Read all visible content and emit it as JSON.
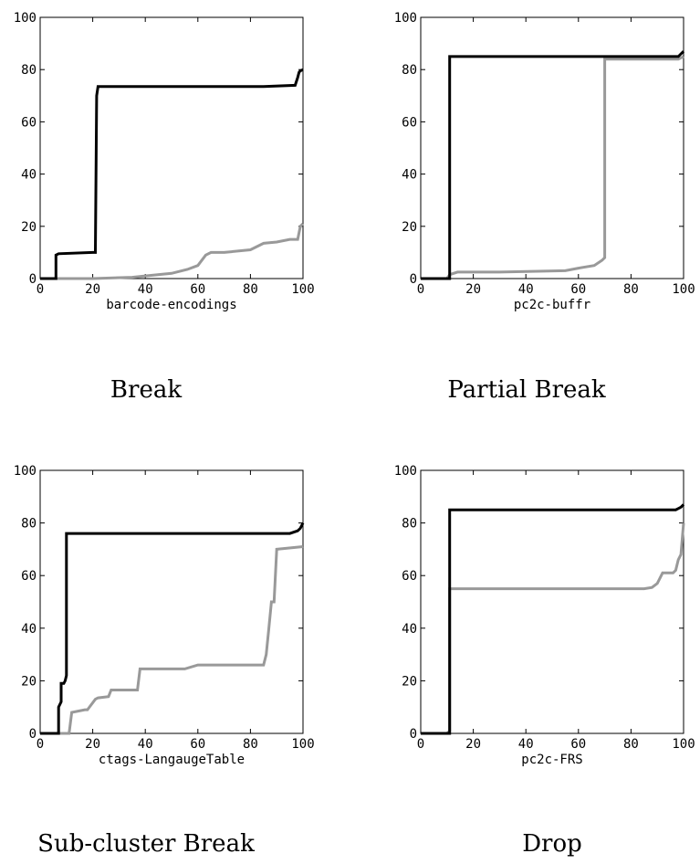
{
  "chart_data": [
    {
      "type": "line",
      "title": "",
      "caption": "Break",
      "xlabel": "barcode-encodings",
      "ylabel": "",
      "xlim": [
        0,
        100
      ],
      "ylim": [
        0,
        100
      ],
      "xticks": [
        0,
        20,
        40,
        60,
        80,
        100
      ],
      "yticks": [
        0,
        20,
        40,
        60,
        80,
        100
      ],
      "grid": false,
      "series": [
        {
          "color": "#000000",
          "x": [
            0,
            6,
            6,
            7,
            20,
            21,
            21.5,
            22,
            25,
            85,
            97,
            98,
            98.5,
            99,
            100
          ],
          "y": [
            0,
            0,
            9,
            9.5,
            10,
            10,
            70,
            73.5,
            73.5,
            73.5,
            74,
            77,
            79,
            79.5,
            80
          ]
        },
        {
          "color": "#999999",
          "x": [
            0,
            20,
            35,
            40,
            50,
            56,
            60,
            63,
            65,
            70,
            80,
            85,
            90,
            95,
            98,
            99,
            100
          ],
          "y": [
            0,
            0,
            0.5,
            1,
            2,
            3.5,
            5,
            9,
            10,
            10,
            11,
            13.5,
            14,
            15,
            15,
            20,
            21
          ]
        }
      ]
    },
    {
      "type": "line",
      "title": "",
      "caption": "Partial Break",
      "xlabel": "pc2c-buffr",
      "ylabel": "",
      "xlim": [
        0,
        100
      ],
      "ylim": [
        0,
        100
      ],
      "xticks": [
        0,
        20,
        40,
        60,
        80,
        100
      ],
      "yticks": [
        0,
        20,
        40,
        60,
        80,
        100
      ],
      "grid": false,
      "series": [
        {
          "color": "#000000",
          "x": [
            0,
            11,
            11,
            98,
            99,
            100
          ],
          "y": [
            0,
            0,
            85,
            85,
            86,
            87
          ]
        },
        {
          "color": "#999999",
          "x": [
            0,
            10,
            11,
            14,
            30,
            55,
            60,
            66,
            69,
            70,
            70,
            98,
            100
          ],
          "y": [
            0,
            0,
            1.5,
            2.5,
            2.5,
            3,
            4,
            5,
            7,
            8,
            84,
            84,
            85
          ]
        }
      ]
    },
    {
      "type": "line",
      "title": "",
      "caption": "Sub-cluster Break",
      "xlabel": "ctags-LangaugeTable",
      "ylabel": "",
      "xlim": [
        0,
        100
      ],
      "ylim": [
        0,
        100
      ],
      "xticks": [
        0,
        20,
        40,
        60,
        80,
        100
      ],
      "yticks": [
        0,
        20,
        40,
        60,
        80,
        100
      ],
      "grid": false,
      "series": [
        {
          "color": "#000000",
          "x": [
            0,
            7,
            7,
            8,
            8,
            9,
            9.5,
            10,
            10,
            95,
            98,
            99,
            100
          ],
          "y": [
            0,
            0,
            10,
            12,
            19,
            19,
            20,
            22,
            76,
            76,
            77,
            78,
            80
          ]
        },
        {
          "color": "#999999",
          "x": [
            0,
            11,
            12,
            17,
            18,
            21,
            22,
            26,
            27,
            37,
            38,
            55,
            60,
            85,
            86,
            87,
            88,
            89,
            90,
            100
          ],
          "y": [
            0,
            0,
            8,
            9,
            9,
            13,
            13.5,
            14,
            16.5,
            16.5,
            24.5,
            24.5,
            26,
            26,
            30,
            40,
            50,
            50,
            70,
            71
          ]
        }
      ]
    },
    {
      "type": "line",
      "title": "",
      "caption": "Drop",
      "xlabel": "pc2c-FRS",
      "ylabel": "",
      "xlim": [
        0,
        100
      ],
      "ylim": [
        0,
        100
      ],
      "xticks": [
        0,
        20,
        40,
        60,
        80,
        100
      ],
      "yticks": [
        0,
        20,
        40,
        60,
        80,
        100
      ],
      "grid": false,
      "series": [
        {
          "color": "#000000",
          "x": [
            0,
            11,
            11,
            97,
            98,
            99,
            100
          ],
          "y": [
            0,
            0,
            85,
            85,
            85.5,
            86,
            87
          ]
        },
        {
          "color": "#999999",
          "x": [
            0,
            10,
            11,
            11,
            85,
            88,
            90,
            92,
            96,
            97,
            98,
            99,
            100
          ],
          "y": [
            0,
            0,
            1,
            55,
            55,
            55.5,
            57,
            61,
            61,
            62,
            66,
            68,
            80
          ]
        }
      ]
    }
  ]
}
